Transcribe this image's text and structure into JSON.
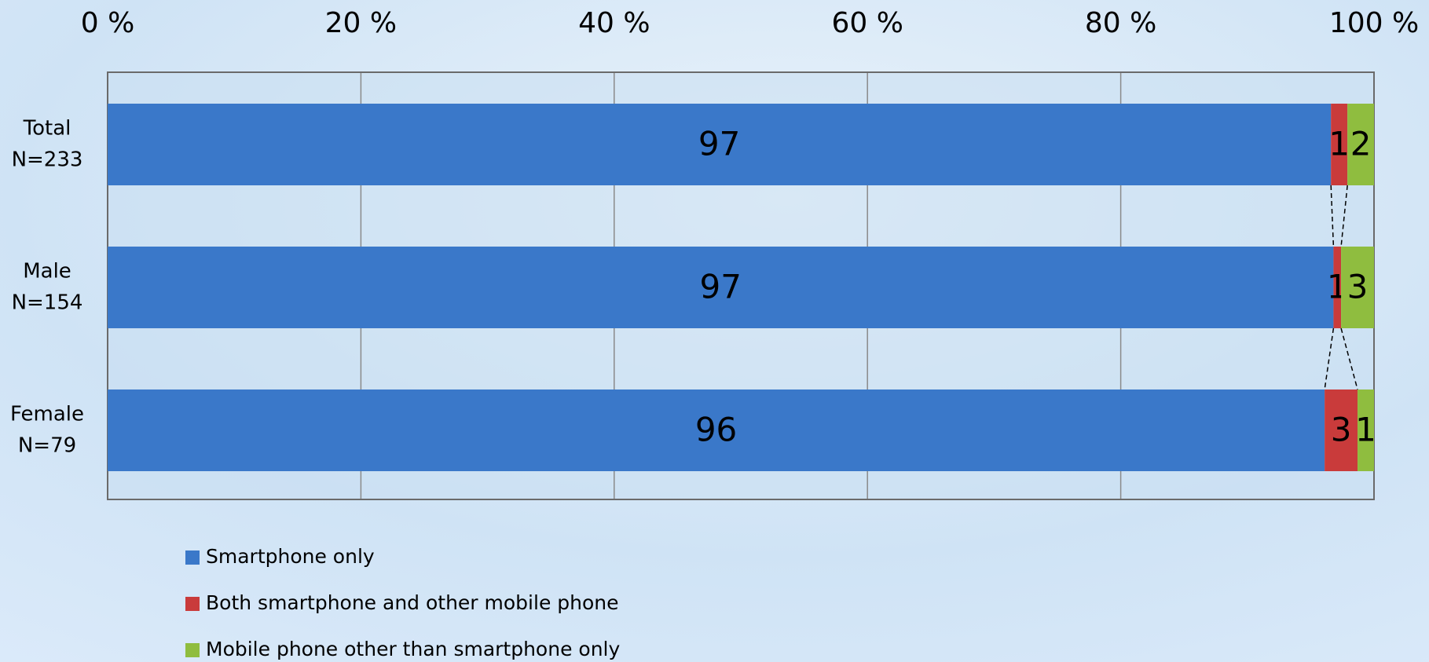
{
  "chart_data": {
    "type": "stacked-barh",
    "categories": [
      [
        "Total",
        "N=233"
      ],
      [
        "Male",
        "N=154"
      ],
      [
        "Female",
        "N=79"
      ]
    ],
    "series": [
      {
        "name": "Smartphone only",
        "color": "#3a78c9",
        "values": [
          96.6,
          96.8,
          96.1
        ],
        "value_labels": [
          "97",
          "97",
          "96"
        ]
      },
      {
        "name": "Both smartphone and other mobile phone",
        "color": "#c93b3b",
        "values": [
          1.3,
          0.6,
          2.6
        ],
        "value_labels": [
          "1",
          "1",
          "3"
        ]
      },
      {
        "name": "Mobile phone other than smartphone only",
        "color": "#8fbd3f",
        "values": [
          2.1,
          2.6,
          1.3
        ],
        "value_labels": [
          "2",
          "3",
          "1"
        ]
      }
    ],
    "xlim": [
      0,
      100
    ],
    "xticks": [
      {
        "value": 0,
        "label": "0 %"
      },
      {
        "value": 20,
        "label": "20 %"
      },
      {
        "value": 40,
        "label": "40 %"
      },
      {
        "value": 60,
        "label": "60 %"
      },
      {
        "value": 80,
        "label": "80 %"
      },
      {
        "value": 100,
        "label": "100 %"
      }
    ],
    "grid": true,
    "legend": "bottom-left"
  }
}
